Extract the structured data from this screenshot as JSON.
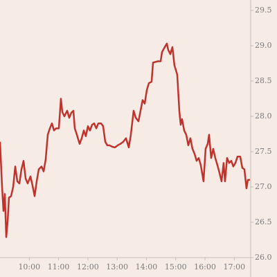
{
  "chart_data": {
    "type": "line",
    "x": [
      9.0,
      9.071,
      9.118,
      9.165,
      9.213,
      9.26,
      9.307,
      9.378,
      9.449,
      9.52,
      9.591,
      9.662,
      9.733,
      9.804,
      9.875,
      9.946,
      10.04,
      10.111,
      10.182,
      10.253,
      10.324,
      10.418,
      10.489,
      10.56,
      10.631,
      10.702,
      10.773,
      10.844,
      10.915,
      11.009,
      11.08,
      11.128,
      11.199,
      11.293,
      11.364,
      11.435,
      11.506,
      11.553,
      11.624,
      11.719,
      11.79,
      11.861,
      11.931,
      12.002,
      12.073,
      12.144,
      12.215,
      12.286,
      12.357,
      12.452,
      12.522,
      12.593,
      12.664,
      12.735,
      12.83,
      12.924,
      13.019,
      13.113,
      13.208,
      13.303,
      13.397,
      13.468,
      13.563,
      13.634,
      13.728,
      13.799,
      13.87,
      13.941,
      14.012,
      14.083,
      14.177,
      14.225,
      14.39,
      14.485,
      14.532,
      14.626,
      14.697,
      14.745,
      14.816,
      14.887,
      14.957,
      15.052,
      15.123,
      15.17,
      15.217,
      15.288,
      15.359,
      15.43,
      15.501,
      15.572,
      15.643,
      15.714,
      15.785,
      15.856,
      15.95,
      16.021,
      16.092,
      16.139,
      16.21,
      16.281,
      16.352,
      16.423,
      16.494,
      16.565,
      16.636,
      16.683,
      16.754,
      16.825,
      16.896,
      16.967,
      17.038,
      17.109,
      17.203,
      17.274,
      17.345,
      17.416,
      17.463,
      17.534
    ],
    "series": [
      {
        "color": "#c0332d",
        "values": [
          27.64,
          27.0,
          26.66,
          26.9,
          26.29,
          26.51,
          26.85,
          26.87,
          27.0,
          27.29,
          27.08,
          27.05,
          27.25,
          27.37,
          27.12,
          27.05,
          27.15,
          27.02,
          26.87,
          27.08,
          27.25,
          27.29,
          27.22,
          27.39,
          27.74,
          27.83,
          27.9,
          27.8,
          27.83,
          27.83,
          28.25,
          28.06,
          28.0,
          28.08,
          27.98,
          28.05,
          28.08,
          27.83,
          27.74,
          27.61,
          27.69,
          27.8,
          27.72,
          27.86,
          27.8,
          27.88,
          27.9,
          27.83,
          27.9,
          27.9,
          27.86,
          27.64,
          27.59,
          27.59,
          27.57,
          27.56,
          27.59,
          27.61,
          27.64,
          27.69,
          27.56,
          27.74,
          28.08,
          27.98,
          27.93,
          28.08,
          28.23,
          28.18,
          28.37,
          28.47,
          28.49,
          28.76,
          28.78,
          28.78,
          28.91,
          28.98,
          29.03,
          28.94,
          28.88,
          28.98,
          28.72,
          28.59,
          28.08,
          27.88,
          27.96,
          27.8,
          27.74,
          27.59,
          27.69,
          27.54,
          27.47,
          27.37,
          27.41,
          27.31,
          27.08,
          27.54,
          27.61,
          27.74,
          27.41,
          27.54,
          27.41,
          27.31,
          27.2,
          27.08,
          27.34,
          27.08,
          27.41,
          27.34,
          27.37,
          27.29,
          27.34,
          27.43,
          27.43,
          27.27,
          27.25,
          26.98,
          27.1,
          27.1
        ]
      }
    ],
    "xlim": [
      9.0,
      17.56
    ],
    "xticks": [
      {
        "value": 10,
        "label": "10:00"
      },
      {
        "value": 11,
        "label": "11:00"
      },
      {
        "value": 12,
        "label": "12:00"
      },
      {
        "value": 13,
        "label": "13:00"
      },
      {
        "value": 14,
        "label": "14:00"
      },
      {
        "value": 15,
        "label": "15:00"
      },
      {
        "value": 16,
        "label": "16:00"
      },
      {
        "value": 17,
        "label": "17:00"
      }
    ],
    "ylim": [
      26.0,
      29.5
    ],
    "yticks": [
      {
        "value": 26,
        "label": "26.0"
      },
      26.5,
      {
        "value": 27,
        "label": "27.0"
      },
      27.5,
      {
        "value": 28,
        "label": "28.0"
      },
      28.5,
      {
        "value": 29,
        "label": "29.0"
      },
      29.5
    ],
    "grid": false
  }
}
